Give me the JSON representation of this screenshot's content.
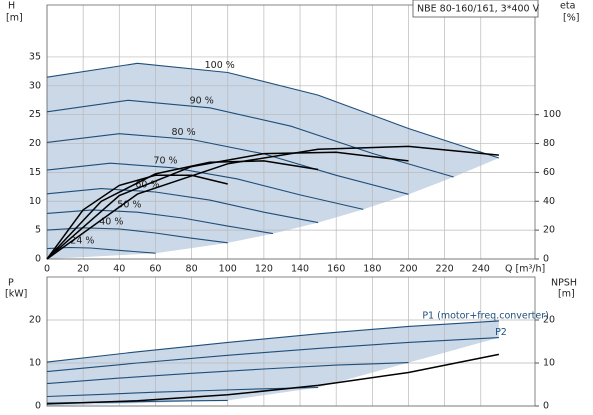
{
  "chart_data": [
    {
      "type": "line",
      "title": "NBE 80-160/161, 3*400 V",
      "y_label": "H",
      "y_unit": "[m]",
      "y2_label": "eta",
      "y2_unit": "[%]",
      "x_label": "Q [m³/h]",
      "xlim": [
        0,
        270
      ],
      "xticks": [
        0,
        20,
        40,
        60,
        80,
        100,
        120,
        140,
        160,
        180,
        200,
        220,
        240
      ],
      "ylim": [
        0,
        44
      ],
      "yticks": [
        0,
        5,
        10,
        15,
        20,
        25,
        30,
        35
      ],
      "y2lim": [
        0,
        176
      ],
      "y2ticks": [
        0,
        20,
        40,
        60,
        80,
        100
      ],
      "grid": true,
      "shade_color": "#cad8e8",
      "series": [
        {
          "name": "100 %",
          "color": "#1f4e79",
          "x": [
            0,
            50,
            100,
            150,
            200,
            250
          ],
          "values": [
            31.5,
            33.9,
            32.3,
            28.4,
            22.6,
            17.5
          ]
        },
        {
          "name": "90 %",
          "color": "#1f4e79",
          "x": [
            0,
            45,
            90,
            135,
            180,
            225
          ],
          "values": [
            25.5,
            27.5,
            26.2,
            23.0,
            18.3,
            14.2
          ]
        },
        {
          "name": "80 %",
          "color": "#1f4e79",
          "x": [
            0,
            40,
            80,
            120,
            160,
            200
          ],
          "values": [
            20.2,
            21.7,
            20.7,
            18.2,
            14.5,
            11.2
          ]
        },
        {
          "name": "70 %",
          "color": "#1f4e79",
          "x": [
            0,
            35,
            70,
            105,
            140,
            175
          ],
          "values": [
            15.4,
            16.6,
            15.8,
            13.9,
            11.1,
            8.6
          ]
        },
        {
          "name": "60 %",
          "color": "#1f4e79",
          "x": [
            0,
            30,
            60,
            90,
            120,
            150
          ],
          "values": [
            11.3,
            12.2,
            11.6,
            10.2,
            8.1,
            6.3
          ]
        },
        {
          "name": "50 %",
          "color": "#1f4e79",
          "x": [
            0,
            25,
            50,
            75,
            100,
            125
          ],
          "values": [
            7.9,
            8.5,
            8.1,
            7.1,
            5.7,
            4.4
          ]
        },
        {
          "name": "40 %",
          "color": "#1f4e79",
          "x": [
            0,
            20,
            40,
            60,
            80,
            100
          ],
          "values": [
            5.0,
            5.4,
            5.2,
            4.5,
            3.6,
            2.8
          ]
        },
        {
          "name": "24 %",
          "color": "#1f4e79",
          "x": [
            0,
            12,
            24,
            36,
            48,
            60
          ],
          "values": [
            1.8,
            2.0,
            1.9,
            1.6,
            1.3,
            1.0
          ]
        },
        {
          "axis": "y2",
          "color": "#000000",
          "x": [
            0,
            50,
            100,
            150,
            200,
            250
          ],
          "values": [
            0,
            45,
            66,
            76,
            78,
            72
          ]
        },
        {
          "axis": "y2",
          "color": "#000000",
          "x": [
            0,
            40,
            80,
            120,
            160,
            200
          ],
          "values": [
            0,
            44,
            64,
            73,
            74,
            68
          ]
        },
        {
          "axis": "y2",
          "color": "#000000",
          "x": [
            0,
            30,
            60,
            90,
            120,
            150
          ],
          "values": [
            0,
            40,
            59,
            67,
            68,
            62
          ]
        },
        {
          "axis": "y2",
          "color": "#000000",
          "x": [
            0,
            20,
            40,
            60,
            80,
            100
          ],
          "values": [
            0,
            34,
            51,
            58,
            58,
            52
          ]
        }
      ]
    },
    {
      "type": "line",
      "y_label": "P",
      "y_unit": "[kW]",
      "y2_label": "NPSH",
      "y2_unit": "[m]",
      "xlim": [
        0,
        270
      ],
      "xticks": [
        0,
        20,
        40,
        60,
        80,
        100,
        120,
        140,
        160,
        180,
        200,
        220,
        240
      ],
      "ylim": [
        0,
        30
      ],
      "yticks": [
        0,
        10,
        20
      ],
      "y2lim": [
        0,
        30
      ],
      "y2ticks": [
        0,
        10,
        20
      ],
      "grid": true,
      "shade_color": "#cad8e8",
      "series": [
        {
          "name": "P1 (motor+freq.converter)",
          "color": "#1f4e79",
          "x": [
            0,
            50,
            100,
            150,
            200,
            250
          ],
          "values": [
            10.2,
            12.6,
            14.8,
            16.8,
            18.5,
            19.8
          ]
        },
        {
          "name": "P2",
          "color": "#1f4e79",
          "x": [
            0,
            50,
            100,
            150,
            200,
            250
          ],
          "values": [
            8.0,
            10.0,
            11.8,
            13.4,
            14.8,
            15.9
          ]
        },
        {
          "color": "#1f4e79",
          "x": [
            0,
            40,
            80,
            120,
            160,
            200
          ],
          "values": [
            5.2,
            6.5,
            7.6,
            8.6,
            9.5,
            10.1
          ]
        },
        {
          "color": "#1f4e79",
          "x": [
            0,
            30,
            60,
            90,
            120,
            150
          ],
          "values": [
            2.2,
            2.7,
            3.2,
            3.6,
            4.0,
            4.3
          ]
        },
        {
          "color": "#1f4e79",
          "x": [
            0,
            20,
            40,
            60,
            80,
            100
          ],
          "values": [
            0.7,
            0.8,
            0.9,
            1.1,
            1.2,
            1.3
          ]
        },
        {
          "axis": "y2",
          "color": "#000000",
          "x": [
            0,
            50,
            100,
            150,
            200,
            250
          ],
          "values": [
            0.5,
            1.2,
            2.6,
            4.8,
            7.8,
            12
          ]
        }
      ]
    }
  ]
}
